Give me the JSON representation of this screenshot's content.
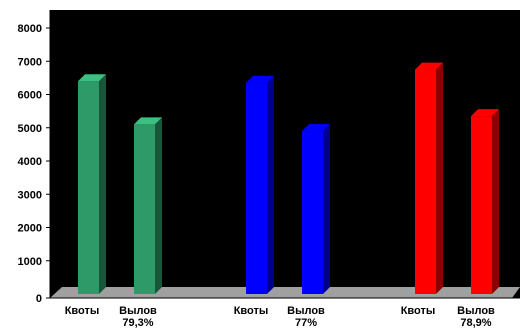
{
  "chart_data": {
    "type": "bar",
    "title": "",
    "xlabel": "",
    "ylabel": "",
    "ylim": [
      0,
      8000
    ],
    "yticks": [
      0,
      1000,
      2000,
      3000,
      4000,
      5000,
      6000,
      7000,
      8000
    ],
    "grid": false,
    "groups": [
      {
        "color": "#2e9a68",
        "bars": [
          {
            "label": [
              "Квоты"
            ],
            "value": 6400
          },
          {
            "label": [
              "Вылов",
              "79,3%"
            ],
            "value": 5100
          }
        ]
      },
      {
        "color": "#0000ff",
        "bars": [
          {
            "label": [
              "Квоты"
            ],
            "value": 6350
          },
          {
            "label": [
              "Вылов",
              "77%"
            ],
            "value": 4900
          }
        ]
      },
      {
        "color": "#ff0000",
        "bars": [
          {
            "label": [
              "Квоты"
            ],
            "value": 6750
          },
          {
            "label": [
              "Вылов",
              "78,9%"
            ],
            "value": 5350
          }
        ]
      }
    ],
    "colors": {
      "plot_background": "#000000",
      "floor": "#a0a0a0",
      "axis": "#000000"
    }
  }
}
